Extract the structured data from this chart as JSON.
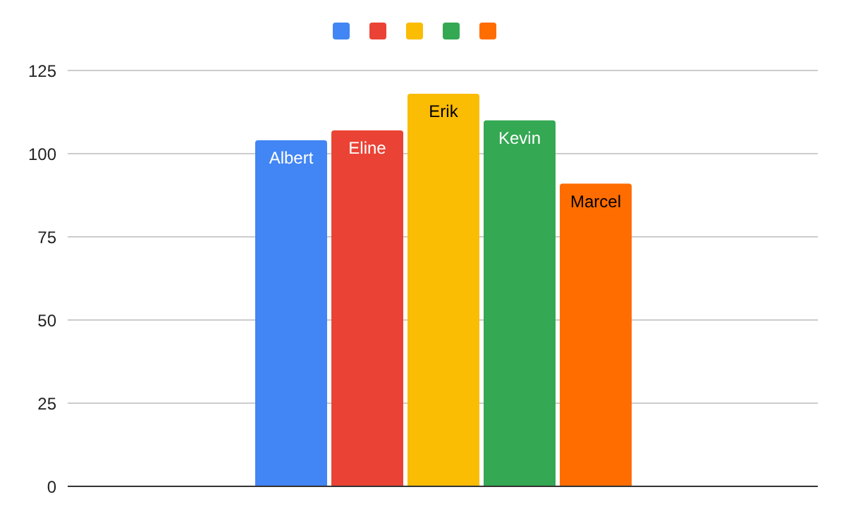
{
  "chart_data": {
    "type": "bar",
    "categories": [
      null
    ],
    "series": [
      {
        "name": "Albert",
        "color": "#4285f4",
        "values": [
          104
        ]
      },
      {
        "name": "Eline",
        "color": "#ea4335",
        "values": [
          107
        ]
      },
      {
        "name": "Erik",
        "color": "#fbbc04",
        "values": [
          118
        ]
      },
      {
        "name": "Kevin",
        "color": "#34a853",
        "values": [
          110
        ]
      },
      {
        "name": "Marcel",
        "color": "#ff6d01",
        "values": [
          91
        ]
      }
    ],
    "ylim": [
      0,
      125
    ],
    "yticks": [
      0,
      25,
      50,
      75,
      100,
      125
    ],
    "grid": "y",
    "legend": "top"
  }
}
